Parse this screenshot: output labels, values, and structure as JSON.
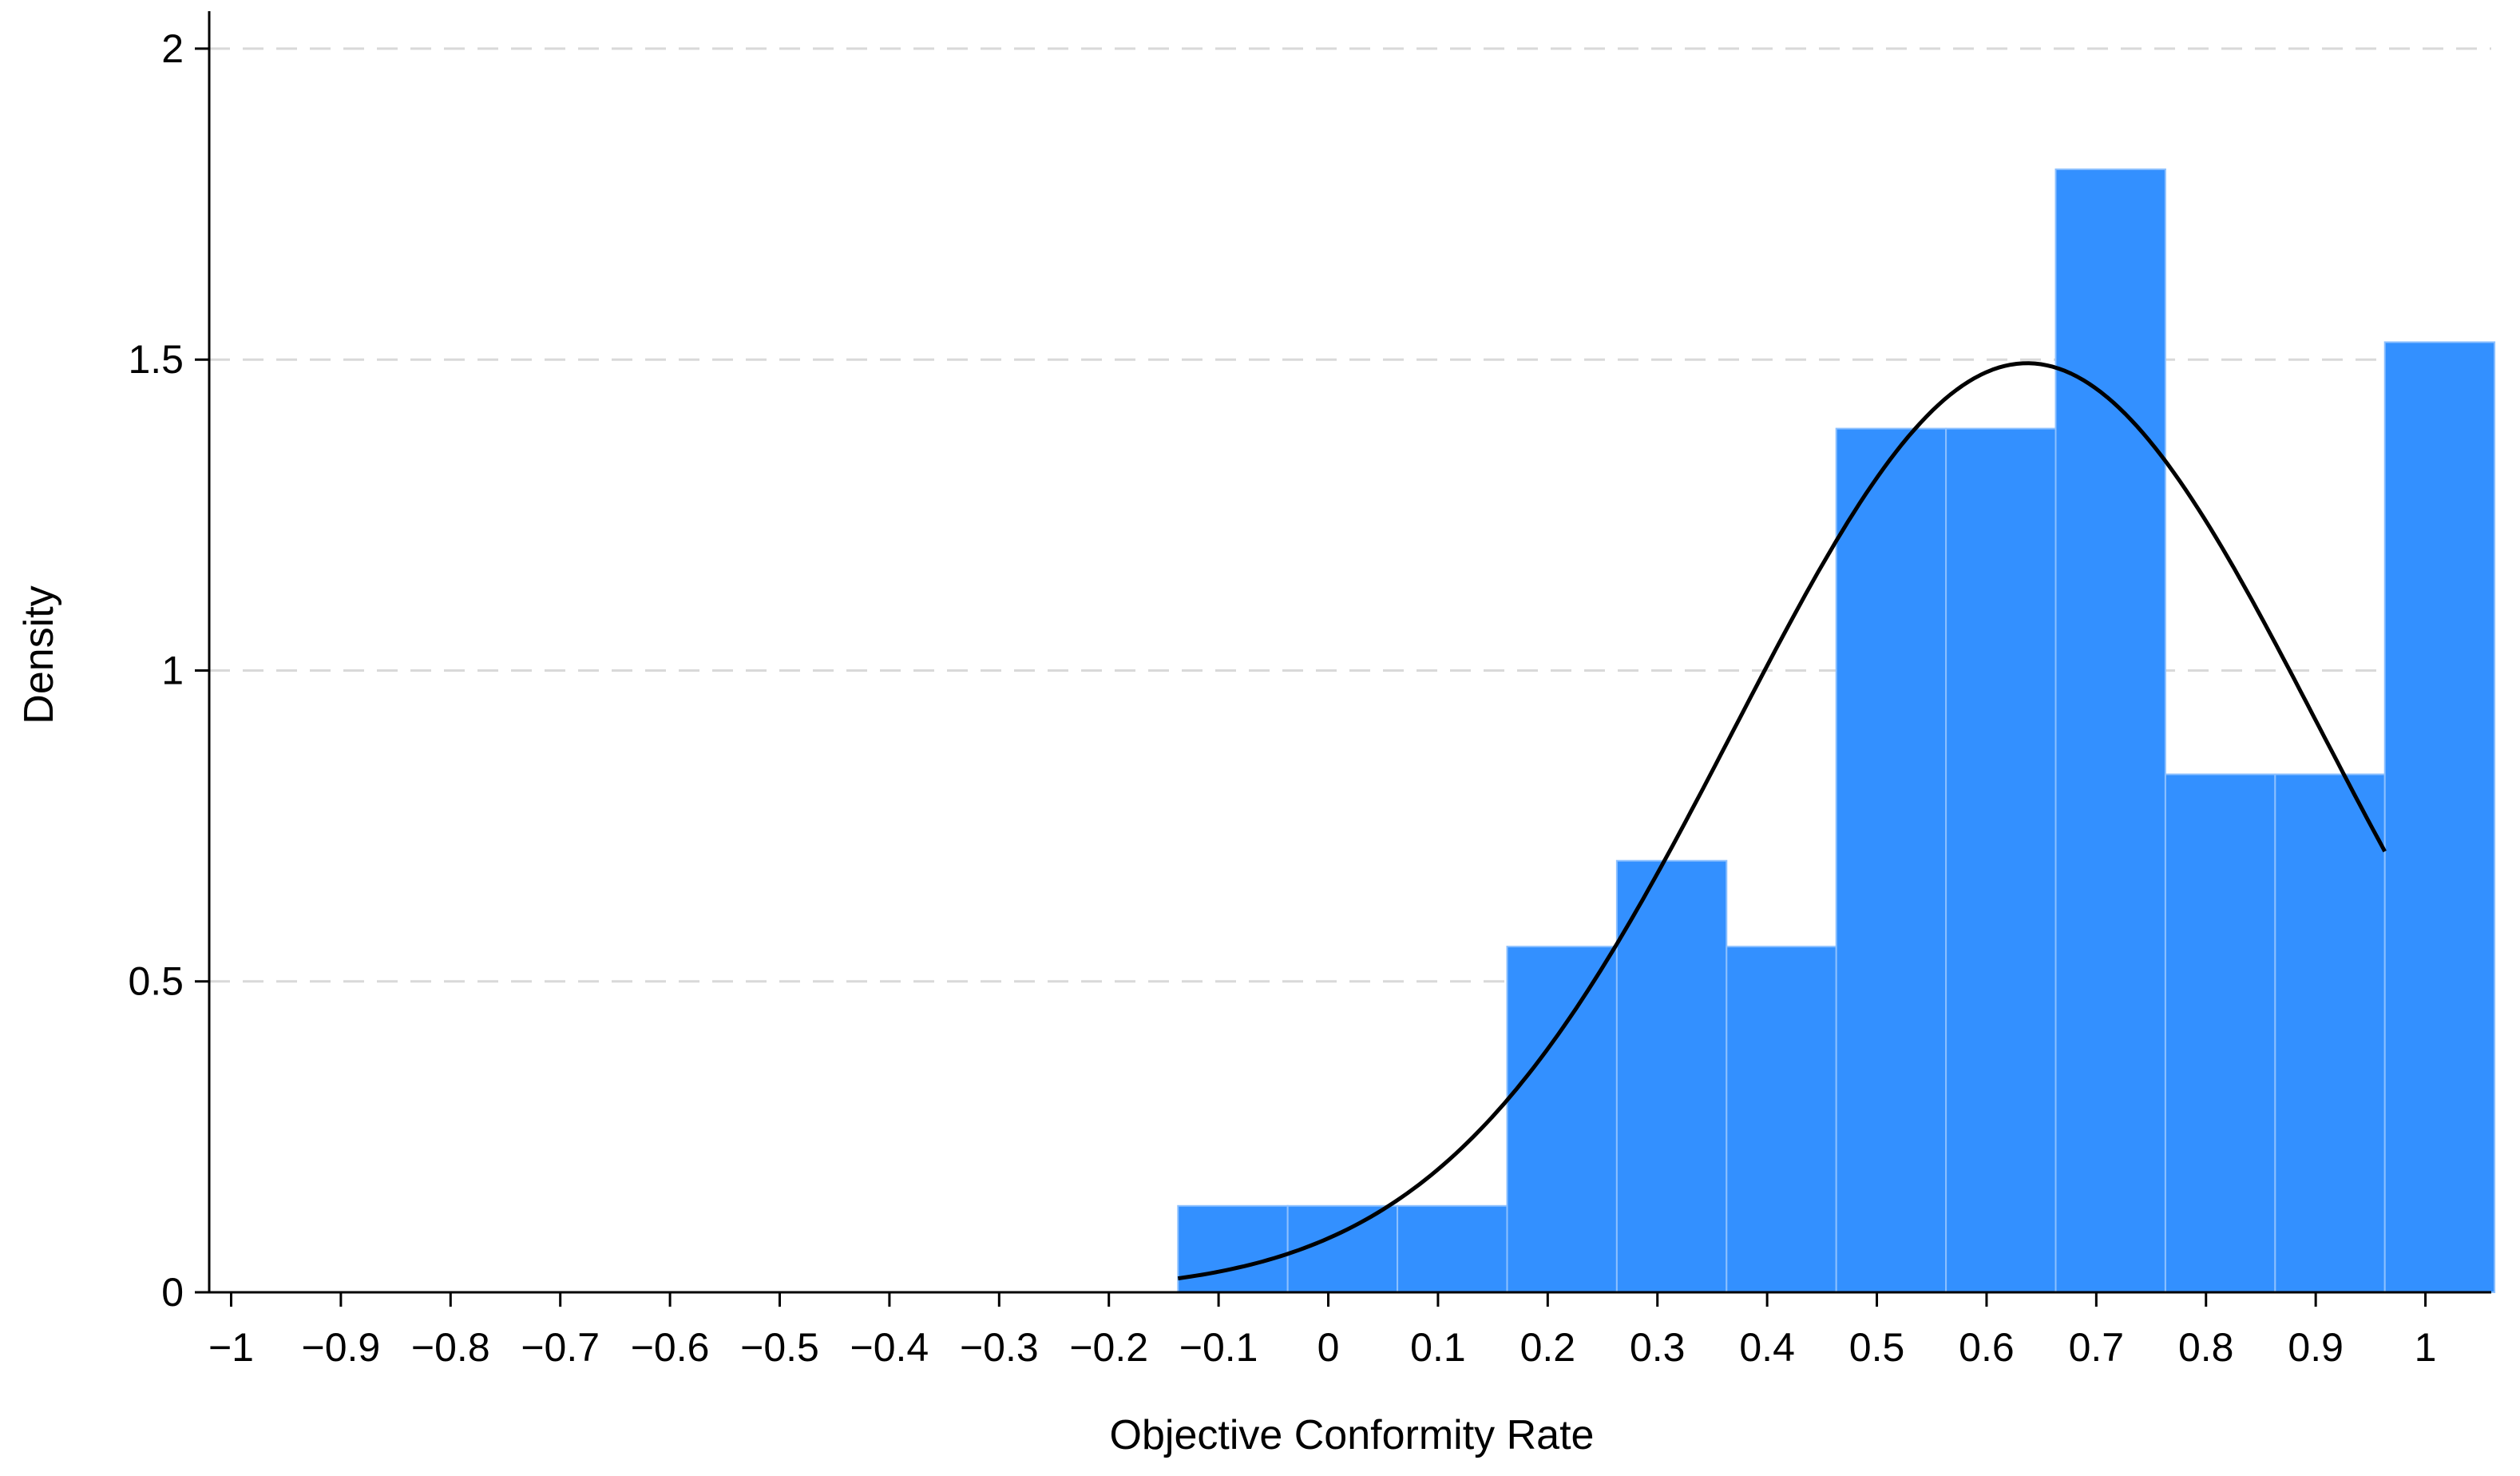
{
  "chart_data": {
    "type": "bar",
    "title": "",
    "xlabel": "Objective Conformity Rate",
    "ylabel": "Density",
    "xlim": [
      -1.02,
      1.06
    ],
    "ylim": [
      0,
      2.05
    ],
    "grid": true,
    "xticks": [
      -1,
      -0.9,
      -0.8,
      -0.7,
      -0.6,
      -0.5,
      -0.4,
      -0.3,
      -0.2,
      -0.1,
      0,
      0.1,
      0.2,
      0.3,
      0.4,
      0.5,
      0.6,
      0.7,
      0.8,
      0.9,
      1
    ],
    "xtick_labels": [
      "−1",
      "−0.9",
      "−0.8",
      "−0.7",
      "−0.6",
      "−0.5",
      "−0.4",
      "−0.3",
      "−0.2",
      "−0.1",
      "0",
      "0.1",
      "0.2",
      "0.3",
      "0.4",
      "0.5",
      "0.6",
      "0.7",
      "0.8",
      "0.9",
      "1"
    ],
    "yticks": [
      0,
      0.5,
      1,
      1.5,
      2
    ],
    "ytick_labels": [
      "0",
      "0.5",
      "1",
      "1.5",
      "2"
    ],
    "bar_color": "#3390FF",
    "bar_edge_color": "#8CC0FF",
    "curve_color": "#000000",
    "grid_color": "#D9D9D9",
    "bins": [
      {
        "x0": -0.137,
        "x1": -0.037,
        "density": 0.139
      },
      {
        "x0": -0.037,
        "x1": 0.063,
        "density": 0.139
      },
      {
        "x0": 0.063,
        "x1": 0.163,
        "density": 0.139
      },
      {
        "x0": 0.163,
        "x1": 0.263,
        "density": 0.556
      },
      {
        "x0": 0.263,
        "x1": 0.363,
        "density": 0.694
      },
      {
        "x0": 0.363,
        "x1": 0.463,
        "density": 0.556
      },
      {
        "x0": 0.463,
        "x1": 0.563,
        "density": 1.389
      },
      {
        "x0": 0.563,
        "x1": 0.663,
        "density": 1.389
      },
      {
        "x0": 0.663,
        "x1": 0.763,
        "density": 1.806
      },
      {
        "x0": 0.763,
        "x1": 0.863,
        "density": 0.833
      },
      {
        "x0": 0.863,
        "x1": 0.963,
        "density": 0.833
      },
      {
        "x0": 0.963,
        "x1": 1.063,
        "density": 1.528
      }
    ],
    "normal_curve": {
      "mean": 0.637,
      "sd": 0.267,
      "x_from": -0.137,
      "x_to": 0.963
    }
  }
}
